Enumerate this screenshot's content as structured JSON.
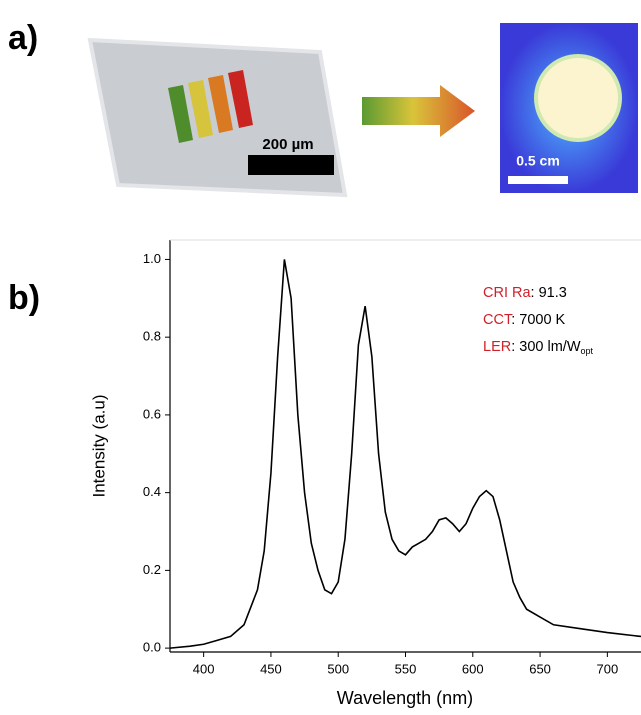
{
  "figure": {
    "panel_a_label": "a)",
    "panel_b_label": "b)",
    "scale_bar_1": "200 µm",
    "scale_bar_2": "0.5 cm"
  },
  "chart_data": {
    "type": "line",
    "x_label": "Wavelength (nm)",
    "y_label": "Intensity (a.u)",
    "x": [
      375,
      390,
      400,
      410,
      420,
      430,
      440,
      445,
      450,
      455,
      460,
      465,
      470,
      475,
      480,
      485,
      490,
      495,
      500,
      505,
      510,
      515,
      520,
      525,
      530,
      535,
      540,
      545,
      550,
      555,
      560,
      565,
      570,
      575,
      580,
      585,
      590,
      595,
      600,
      605,
      610,
      615,
      620,
      625,
      630,
      635,
      640,
      650,
      660,
      680,
      700,
      725
    ],
    "values": [
      0.0,
      0.005,
      0.01,
      0.02,
      0.03,
      0.06,
      0.15,
      0.25,
      0.45,
      0.75,
      1.0,
      0.9,
      0.6,
      0.4,
      0.27,
      0.2,
      0.15,
      0.14,
      0.17,
      0.28,
      0.5,
      0.78,
      0.88,
      0.75,
      0.5,
      0.35,
      0.28,
      0.25,
      0.24,
      0.26,
      0.27,
      0.28,
      0.3,
      0.33,
      0.335,
      0.32,
      0.3,
      0.32,
      0.36,
      0.39,
      0.405,
      0.39,
      0.33,
      0.25,
      0.17,
      0.13,
      0.1,
      0.08,
      0.06,
      0.05,
      0.04,
      0.03
    ],
    "color": "#000000",
    "xlim": [
      375,
      725
    ],
    "ylim": [
      -0.01,
      1.05
    ],
    "xticks": [
      400,
      450,
      500,
      550,
      600,
      650,
      700
    ],
    "yticks": [
      {
        "value": 0,
        "label": "0.0"
      },
      0.2,
      0.4,
      0.6,
      0.8,
      {
        "value": 1,
        "label": "1.0"
      }
    ],
    "annotations": [
      {
        "key": "CRI Ra",
        "text": ": 91.3"
      },
      {
        "key": "CCT",
        "text": ": 7000 K"
      },
      {
        "key": "LER",
        "text": ": 300 lm/W",
        "subscript": "opt"
      }
    ],
    "annotation_key_color": "#d0212a"
  }
}
